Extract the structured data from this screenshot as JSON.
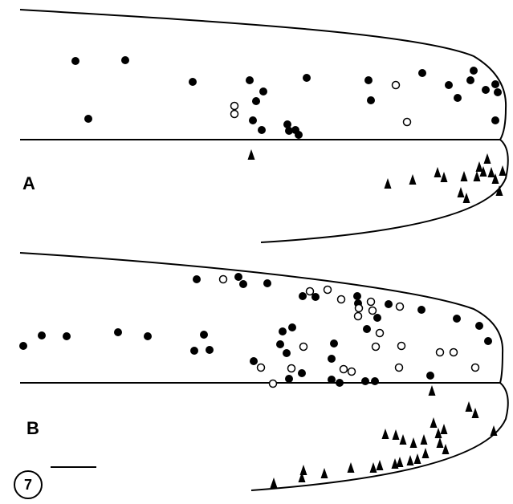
{
  "panels": [
    {
      "label": "A"
    },
    {
      "label": "B"
    }
  ],
  "figure_number": "7"
}
